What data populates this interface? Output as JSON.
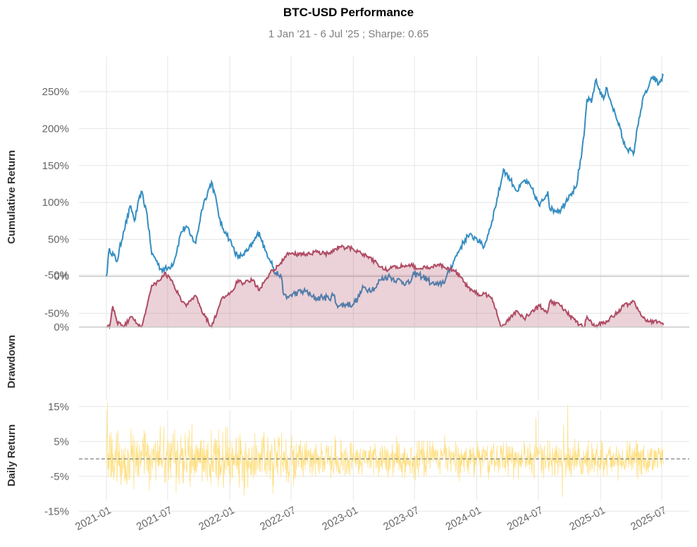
{
  "title": "BTC-USD Performance",
  "subtitle": "1 Jan '21 -  6 Jul '25 ;  Sharpe: 0.65",
  "chart_data": [
    {
      "type": "line",
      "ylabel": "Cumulative Return",
      "ylim": [
        -50,
        285
      ],
      "yticks": [
        250,
        200,
        150,
        100,
        50,
        0,
        -50
      ],
      "ytick_labels": [
        "250%",
        "200%",
        "150%",
        "100%",
        "50%",
        "0%",
        "-50%"
      ],
      "color": "#348dc1",
      "x": [
        "2021-01-01",
        "2021-01-10",
        "2021-02-01",
        "2021-02-20",
        "2021-03-14",
        "2021-03-25",
        "2021-04-14",
        "2021-05-01",
        "2021-05-15",
        "2021-05-25",
        "2021-06-10",
        "2021-07-01",
        "2021-07-20",
        "2021-08-10",
        "2021-08-25",
        "2021-09-07",
        "2021-09-22",
        "2021-10-10",
        "2021-10-20",
        "2021-11-08",
        "2021-11-25",
        "2021-12-05",
        "2021-12-20",
        "2022-01-10",
        "2022-01-25",
        "2022-02-10",
        "2022-02-24",
        "2022-03-10",
        "2022-03-29",
        "2022-04-15",
        "2022-05-05",
        "2022-05-12",
        "2022-05-31",
        "2022-06-10",
        "2022-06-18",
        "2022-07-01",
        "2022-07-20",
        "2022-08-15",
        "2022-09-01",
        "2022-09-15",
        "2022-10-01",
        "2022-10-20",
        "2022-11-05",
        "2022-11-09",
        "2022-11-21",
        "2022-12-10",
        "2022-12-31",
        "2023-01-14",
        "2023-01-31",
        "2023-02-15",
        "2023-03-10",
        "2023-03-20",
        "2023-04-14",
        "2023-05-10",
        "2023-06-15",
        "2023-06-30",
        "2023-07-15",
        "2023-08-10",
        "2023-08-20",
        "2023-09-10",
        "2023-09-30",
        "2023-10-24",
        "2023-11-15",
        "2023-12-05",
        "2023-12-31",
        "2024-01-12",
        "2024-01-23",
        "2024-02-15",
        "2024-03-14",
        "2024-03-20",
        "2024-04-10",
        "2024-05-01",
        "2024-05-20",
        "2024-06-10",
        "2024-07-05",
        "2024-07-29",
        "2024-08-05",
        "2024-09-06",
        "2024-09-30",
        "2024-10-20",
        "2024-11-05",
        "2024-11-13",
        "2024-11-22",
        "2024-12-05",
        "2024-12-17",
        "2025-01-10",
        "2025-01-20",
        "2025-02-05",
        "2025-02-28",
        "2025-03-10",
        "2025-04-08",
        "2025-04-25",
        "2025-05-10",
        "2025-05-22",
        "2025-06-05",
        "2025-06-22",
        "2025-07-06"
      ],
      "y": [
        0,
        38,
        20,
        60,
        95,
        75,
        115,
        85,
        30,
        25,
        10,
        10,
        20,
        60,
        68,
        55,
        45,
        90,
        105,
        128,
        95,
        70,
        60,
        40,
        25,
        30,
        35,
        45,
        60,
        35,
        20,
        5,
        2,
        -25,
        -30,
        -25,
        -22,
        -20,
        -28,
        -30,
        -28,
        -30,
        -25,
        -35,
        -40,
        -38,
        -38,
        -30,
        -15,
        -18,
        -15,
        -5,
        0,
        -5,
        -10,
        3,
        2,
        -5,
        -10,
        -12,
        -5,
        20,
        40,
        55,
        52,
        45,
        40,
        75,
        130,
        145,
        130,
        115,
        130,
        120,
        95,
        115,
        90,
        90,
        110,
        120,
        160,
        190,
        240,
        235,
        265,
        240,
        255,
        230,
        200,
        180,
        165,
        215,
        245,
        255,
        270,
        260,
        272
      ]
    },
    {
      "type": "area",
      "ylabel": "Drawdown",
      "ylim": [
        -77,
        0
      ],
      "yticks": [
        0,
        -50
      ],
      "ytick_labels": [
        "0%",
        "-50%"
      ],
      "color": "#af4b64",
      "x": [
        "2021-01-01",
        "2021-01-10",
        "2021-01-20",
        "2021-02-01",
        "2021-02-21",
        "2021-03-14",
        "2021-04-14",
        "2021-05-01",
        "2021-05-15",
        "2021-05-25",
        "2021-06-10",
        "2021-06-22",
        "2021-07-10",
        "2021-07-20",
        "2021-08-10",
        "2021-08-25",
        "2021-09-07",
        "2021-09-22",
        "2021-10-10",
        "2021-10-20",
        "2021-11-08",
        "2021-11-25",
        "2021-12-05",
        "2021-12-20",
        "2022-01-10",
        "2022-01-25",
        "2022-02-10",
        "2022-03-10",
        "2022-03-29",
        "2022-04-15",
        "2022-05-05",
        "2022-05-12",
        "2022-06-10",
        "2022-06-18",
        "2022-07-01",
        "2022-08-15",
        "2022-09-15",
        "2022-10-20",
        "2022-11-09",
        "2022-11-21",
        "2022-12-31",
        "2023-01-31",
        "2023-03-10",
        "2023-03-20",
        "2023-04-14",
        "2023-05-10",
        "2023-06-15",
        "2023-07-15",
        "2023-08-20",
        "2023-09-10",
        "2023-10-24",
        "2023-11-15",
        "2023-12-05",
        "2024-01-12",
        "2024-01-23",
        "2024-02-15",
        "2024-03-14",
        "2024-04-10",
        "2024-05-01",
        "2024-05-20",
        "2024-06-10",
        "2024-07-05",
        "2024-07-29",
        "2024-08-05",
        "2024-09-06",
        "2024-10-20",
        "2024-11-13",
        "2024-11-22",
        "2024-12-05",
        "2024-12-17",
        "2025-01-10",
        "2025-01-20",
        "2025-02-05",
        "2025-03-10",
        "2025-04-08",
        "2025-04-25",
        "2025-05-22",
        "2025-06-22",
        "2025-07-06"
      ],
      "y": [
        0,
        0,
        -20,
        -5,
        0,
        -10,
        0,
        -20,
        -40,
        -42,
        -45,
        -52,
        -45,
        -40,
        -25,
        -20,
        -25,
        -30,
        -15,
        -10,
        0,
        -15,
        -25,
        -30,
        -35,
        -45,
        -42,
        -45,
        -35,
        -45,
        -55,
        -55,
        -65,
        -70,
        -70,
        -70,
        -72,
        -70,
        -75,
        -77,
        -75,
        -70,
        -62,
        -58,
        -55,
        -58,
        -60,
        -56,
        -58,
        -60,
        -55,
        -48,
        -38,
        -30,
        -32,
        -28,
        0,
        -10,
        -15,
        -8,
        -15,
        -20,
        -15,
        -25,
        -20,
        -5,
        0,
        -10,
        -5,
        0,
        -5,
        -5,
        -10,
        -20,
        -25,
        -15,
        -5,
        -5,
        -2
      ]
    },
    {
      "type": "line",
      "ylabel": "Daily Return",
      "ylim": [
        -18,
        20
      ],
      "yticks": [
        15,
        5,
        -5,
        -15
      ],
      "ytick_labels": [
        "15%",
        "5%",
        "-5%",
        "-15%"
      ],
      "color": "#fedd78",
      "series": "daily returns (dense noise band, typically within ±5%, extremes about +19% and -16%)"
    }
  ],
  "x_axis": {
    "ticks": [
      "2021-01-01",
      "2021-07-01",
      "2022-01-01",
      "2022-07-01",
      "2023-01-01",
      "2023-07-01",
      "2024-01-01",
      "2024-07-01",
      "2025-01-01",
      "2025-07-01"
    ],
    "tick_labels": [
      "2021-01",
      "2021-07",
      "2022-01",
      "2022-07",
      "2023-01",
      "2023-07",
      "2024-01",
      "2024-07",
      "2025-01",
      "2025-07"
    ]
  }
}
